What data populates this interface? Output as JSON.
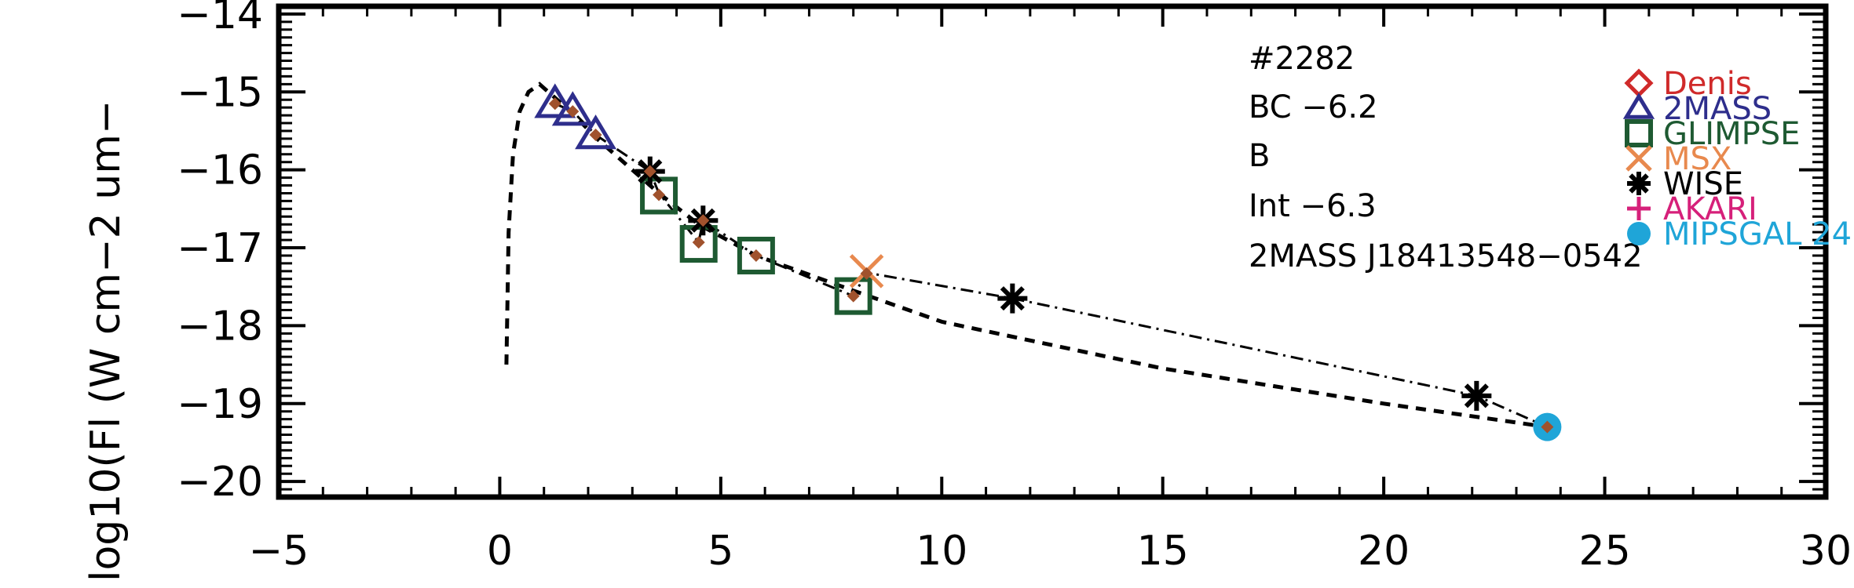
{
  "chart_data": {
    "type": "scatter",
    "title": "",
    "xlabel": "",
    "ylabel": "log10(Fl (W cm−2 um−",
    "xlim": [
      -5,
      30
    ],
    "ylim": [
      -20.2,
      -13.9
    ],
    "x_ticks": [
      -5,
      0,
      5,
      10,
      15,
      20,
      25,
      30
    ],
    "x_tick_labels": [
      "−5",
      "0",
      "5",
      "10",
      "15",
      "20",
      "25",
      "30"
    ],
    "y_ticks": [
      -20,
      -19,
      -18,
      -17,
      -16,
      -15,
      -14
    ],
    "y_tick_labels": [
      "−20",
      "−19",
      "−18",
      "−17",
      "−16",
      "−15",
      "−14"
    ],
    "grid": false,
    "legend_position": "top-right",
    "annotations": [
      "#2282",
      "BC −6.2",
      "B",
      "Int −6.3",
      "2MASS J18413548−0542"
    ],
    "model_curve": {
      "style": "dashed",
      "x": [
        0.15,
        0.2,
        0.3,
        0.45,
        0.65,
        0.9,
        1.2,
        1.6,
        2.2,
        3.0,
        3.6,
        4.5,
        5.8,
        8.0,
        10.0,
        15.0,
        20.0,
        23.7
      ],
      "y": [
        -18.5,
        -16.8,
        -15.8,
        -15.25,
        -15.0,
        -14.9,
        -15.05,
        -15.25,
        -15.6,
        -16.0,
        -16.3,
        -16.7,
        -17.1,
        -17.55,
        -17.95,
        -18.55,
        -19.0,
        -19.3
      ]
    },
    "observed_sed": {
      "style": "dash-dot",
      "x": [
        1.25,
        1.65,
        2.17,
        3.4,
        3.6,
        4.5,
        4.6,
        5.8,
        8.0,
        8.3,
        11.6,
        22.1,
        23.7
      ],
      "y": [
        -15.15,
        -15.25,
        -15.55,
        -16.02,
        -16.3,
        -16.93,
        -16.65,
        -17.1,
        -17.62,
        -17.32,
        -17.65,
        -18.9,
        -19.3
      ]
    },
    "series": [
      {
        "name": "Denis",
        "marker": "diamond",
        "color": "#d02a2a",
        "x": [],
        "y": []
      },
      {
        "name": "2MASS",
        "marker": "triangle",
        "color": "#2e2e8c",
        "x": [
          1.25,
          1.65,
          2.17
        ],
        "y": [
          -15.15,
          -15.25,
          -15.55
        ]
      },
      {
        "name": "GLIMPSE",
        "marker": "square",
        "color": "#1e5a32",
        "x": [
          3.6,
          4.5,
          5.8,
          8.0
        ],
        "y": [
          -16.33,
          -16.95,
          -17.1,
          -17.62
        ]
      },
      {
        "name": "MSX",
        "marker": "x",
        "color": "#e8894e",
        "x": [
          8.3
        ],
        "y": [
          -17.3
        ]
      },
      {
        "name": "WISE",
        "marker": "asterisk",
        "color": "#000000",
        "x": [
          3.4,
          4.6,
          11.6,
          22.1
        ],
        "y": [
          -16.02,
          -16.65,
          -17.65,
          -18.9
        ]
      },
      {
        "name": "AKARI",
        "marker": "plus",
        "color": "#d6207a",
        "x": [],
        "y": []
      },
      {
        "name": "MIPSGAL 24",
        "marker": "filled-circle",
        "color": "#1fa5d8",
        "x": [
          23.7
        ],
        "y": [
          -19.3
        ]
      }
    ],
    "model_points": {
      "marker": "small-diamond",
      "color": "#a0522d",
      "x": [
        1.25,
        1.65,
        2.17,
        3.4,
        3.6,
        4.5,
        4.6,
        5.8,
        8.0,
        8.3,
        23.7
      ],
      "y": [
        -15.15,
        -15.25,
        -15.55,
        -16.02,
        -16.32,
        -16.93,
        -16.65,
        -17.1,
        -17.62,
        -17.33,
        -19.3
      ]
    }
  }
}
